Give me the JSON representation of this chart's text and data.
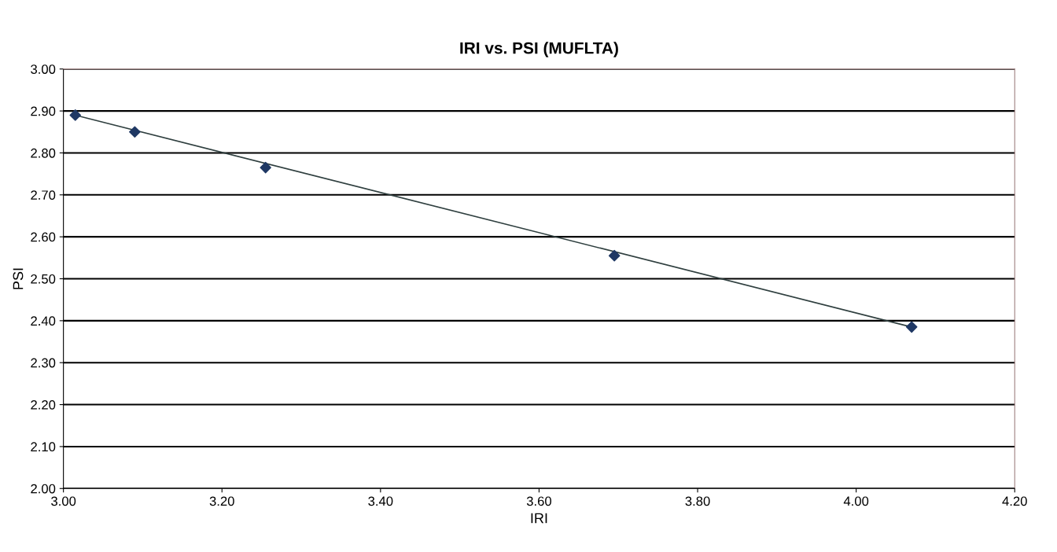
{
  "chart_data": {
    "type": "scatter",
    "title": "IRI vs. PSI (MUFLTA)",
    "xlabel": "IRI",
    "ylabel": "PSI",
    "xlim": [
      3.0,
      4.2
    ],
    "xticks": [
      {
        "value": 3.0,
        "label": "3.00"
      },
      {
        "value": 3.2,
        "label": "3.20"
      },
      {
        "value": 3.4,
        "label": "3.40"
      },
      {
        "value": 3.6,
        "label": "3.60"
      },
      {
        "value": 3.8,
        "label": "3.80"
      },
      {
        "value": 4.0,
        "label": "4.00"
      },
      {
        "value": 4.2,
        "label": "4.20"
      }
    ],
    "ylim": [
      2.0,
      3.0
    ],
    "yticks": [
      {
        "value": 2.0,
        "label": "2.00"
      },
      {
        "value": 2.1,
        "label": "2.10"
      },
      {
        "value": 2.2,
        "label": "2.20"
      },
      {
        "value": 2.3,
        "label": "2.30"
      },
      {
        "value": 2.4,
        "label": "2.40"
      },
      {
        "value": 2.5,
        "label": "2.50"
      },
      {
        "value": 2.6,
        "label": "2.60"
      },
      {
        "value": 2.7,
        "label": "2.70"
      },
      {
        "value": 2.8,
        "label": "2.80"
      },
      {
        "value": 2.9,
        "label": "2.90"
      },
      {
        "value": 3.0,
        "label": "3.00"
      }
    ],
    "grid": "y",
    "series": [
      {
        "marker": "diamond",
        "color": "#1f3864",
        "x": [
          3.015,
          3.09,
          3.255,
          3.695,
          4.07
        ],
        "values": [
          2.89,
          2.85,
          2.765,
          2.555,
          2.385
        ]
      },
      {
        "type": "line",
        "color": "#2f3f3f",
        "x": [
          3.015,
          4.07
        ],
        "values": [
          2.89,
          2.385
        ]
      }
    ]
  }
}
